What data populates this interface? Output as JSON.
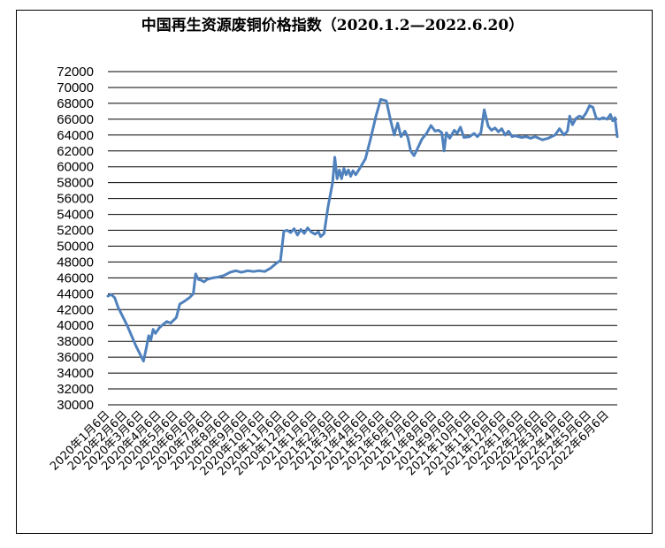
{
  "chart_data": {
    "type": "line",
    "title": "中国再生资源废铜价格指数（2020.1.2—2022.6.20）",
    "ylim": [
      30000,
      72000
    ],
    "ystep": 2000,
    "grid": true,
    "x_tick_labels": [
      "2020年1月6日",
      "2020年2月6日",
      "2020年3月6日",
      "2020年4月6日",
      "2020年5月6日",
      "2020年6月6日",
      "2020年7月6日",
      "2020年8月6日",
      "2020年9月6日",
      "2020年10月6日",
      "2020年11月6日",
      "2020年12月6日",
      "2021年1月6日",
      "2021年2月6日",
      "2021年3月6日",
      "2021年4月6日",
      "2021年5月6日",
      "2021年6月6日",
      "2021年7月6日",
      "2021年8月6日",
      "2021年9月6日",
      "2021年10月6日",
      "2021年11月6日",
      "2021年12月6日",
      "2022年1月6日",
      "2022年2月6日",
      "2022年3月6日",
      "2022年4月6日",
      "2022年5月6日",
      "2022年6月6日"
    ],
    "series": [
      {
        "color": "#4f81bd",
        "points": [
          [
            "2020-01-02",
            43700
          ],
          [
            "2020-01-08",
            43900
          ],
          [
            "2020-01-14",
            43500
          ],
          [
            "2020-01-20",
            42300
          ],
          [
            "2020-02-05",
            40000
          ],
          [
            "2020-02-20",
            37500
          ],
          [
            "2020-03-05",
            35500
          ],
          [
            "2020-03-10",
            37200
          ],
          [
            "2020-03-14",
            38700
          ],
          [
            "2020-03-18",
            38200
          ],
          [
            "2020-03-22",
            39500
          ],
          [
            "2020-03-26",
            39000
          ],
          [
            "2020-04-02",
            39700
          ],
          [
            "2020-04-08",
            40100
          ],
          [
            "2020-04-15",
            40500
          ],
          [
            "2020-04-22",
            40300
          ],
          [
            "2020-05-02",
            41000
          ],
          [
            "2020-05-08",
            42700
          ],
          [
            "2020-05-15",
            43000
          ],
          [
            "2020-05-25",
            43500
          ],
          [
            "2020-06-01",
            44000
          ],
          [
            "2020-06-05",
            46500
          ],
          [
            "2020-06-10",
            45800
          ],
          [
            "2020-06-15",
            45700
          ],
          [
            "2020-06-20",
            45500
          ],
          [
            "2020-06-25",
            45800
          ],
          [
            "2020-07-05",
            46000
          ],
          [
            "2020-07-15",
            46100
          ],
          [
            "2020-07-25",
            46300
          ],
          [
            "2020-08-05",
            46700
          ],
          [
            "2020-08-15",
            46900
          ],
          [
            "2020-08-25",
            46700
          ],
          [
            "2020-09-05",
            46900
          ],
          [
            "2020-09-15",
            46800
          ],
          [
            "2020-09-25",
            46900
          ],
          [
            "2020-10-05",
            46800
          ],
          [
            "2020-10-15",
            47200
          ],
          [
            "2020-10-25",
            47800
          ],
          [
            "2020-11-02",
            48200
          ],
          [
            "2020-11-08",
            51900
          ],
          [
            "2020-11-14",
            52000
          ],
          [
            "2020-11-20",
            51700
          ],
          [
            "2020-11-26",
            52200
          ],
          [
            "2020-12-02",
            51400
          ],
          [
            "2020-12-08",
            52100
          ],
          [
            "2020-12-14",
            51600
          ],
          [
            "2020-12-20",
            52300
          ],
          [
            "2020-12-26",
            51800
          ],
          [
            "2021-01-02",
            51500
          ],
          [
            "2021-01-08",
            51800
          ],
          [
            "2021-01-12",
            51200
          ],
          [
            "2021-01-18",
            51600
          ],
          [
            "2021-01-25",
            55000
          ],
          [
            "2021-02-02",
            58000
          ],
          [
            "2021-02-06",
            61200
          ],
          [
            "2021-02-10",
            58500
          ],
          [
            "2021-02-14",
            59600
          ],
          [
            "2021-02-18",
            58500
          ],
          [
            "2021-02-22",
            59800
          ],
          [
            "2021-02-26",
            59000
          ],
          [
            "2021-03-02",
            59600
          ],
          [
            "2021-03-06",
            58800
          ],
          [
            "2021-03-10",
            59500
          ],
          [
            "2021-03-15",
            59000
          ],
          [
            "2021-03-22",
            59800
          ],
          [
            "2021-04-01",
            61000
          ],
          [
            "2021-04-10",
            63500
          ],
          [
            "2021-04-20",
            66500
          ],
          [
            "2021-04-28",
            68500
          ],
          [
            "2021-05-08",
            68300
          ],
          [
            "2021-05-15",
            66000
          ],
          [
            "2021-05-22",
            64000
          ],
          [
            "2021-05-28",
            65500
          ],
          [
            "2021-06-03",
            63800
          ],
          [
            "2021-06-10",
            64500
          ],
          [
            "2021-06-15",
            63700
          ],
          [
            "2021-06-20",
            62000
          ],
          [
            "2021-06-26",
            61400
          ],
          [
            "2021-07-02",
            62300
          ],
          [
            "2021-07-10",
            63500
          ],
          [
            "2021-07-18",
            64200
          ],
          [
            "2021-07-26",
            65200
          ],
          [
            "2021-08-02",
            64500
          ],
          [
            "2021-08-08",
            64600
          ],
          [
            "2021-08-14",
            64300
          ],
          [
            "2021-08-18",
            62000
          ],
          [
            "2021-08-22",
            64300
          ],
          [
            "2021-08-28",
            63600
          ],
          [
            "2021-09-05",
            64600
          ],
          [
            "2021-09-10",
            64200
          ],
          [
            "2021-09-16",
            65000
          ],
          [
            "2021-09-22",
            63700
          ],
          [
            "2021-10-02",
            63800
          ],
          [
            "2021-10-10",
            64200
          ],
          [
            "2021-10-16",
            63800
          ],
          [
            "2021-10-22",
            64300
          ],
          [
            "2021-10-28",
            67200
          ],
          [
            "2021-11-04",
            65100
          ],
          [
            "2021-11-10",
            64600
          ],
          [
            "2021-11-16",
            64900
          ],
          [
            "2021-11-22",
            64400
          ],
          [
            "2021-11-28",
            64800
          ],
          [
            "2021-12-04",
            64000
          ],
          [
            "2021-12-10",
            64500
          ],
          [
            "2021-12-16",
            63800
          ],
          [
            "2021-12-22",
            63900
          ],
          [
            "2022-01-02",
            63700
          ],
          [
            "2022-01-10",
            63800
          ],
          [
            "2022-01-18",
            63600
          ],
          [
            "2022-01-26",
            63800
          ],
          [
            "2022-02-08",
            63400
          ],
          [
            "2022-02-18",
            63600
          ],
          [
            "2022-03-02",
            64000
          ],
          [
            "2022-03-10",
            64800
          ],
          [
            "2022-03-18",
            64000
          ],
          [
            "2022-03-24",
            64500
          ],
          [
            "2022-03-28",
            66400
          ],
          [
            "2022-04-02",
            65300
          ],
          [
            "2022-04-08",
            66100
          ],
          [
            "2022-04-14",
            66400
          ],
          [
            "2022-04-20",
            66200
          ],
          [
            "2022-04-26",
            66800
          ],
          [
            "2022-05-02",
            67700
          ],
          [
            "2022-05-08",
            67500
          ],
          [
            "2022-05-14",
            66100
          ],
          [
            "2022-05-20",
            66000
          ],
          [
            "2022-05-26",
            66200
          ],
          [
            "2022-06-02",
            66000
          ],
          [
            "2022-06-08",
            66600
          ],
          [
            "2022-06-12",
            65800
          ],
          [
            "2022-06-16",
            66200
          ],
          [
            "2022-06-20",
            63800
          ]
        ]
      }
    ]
  }
}
